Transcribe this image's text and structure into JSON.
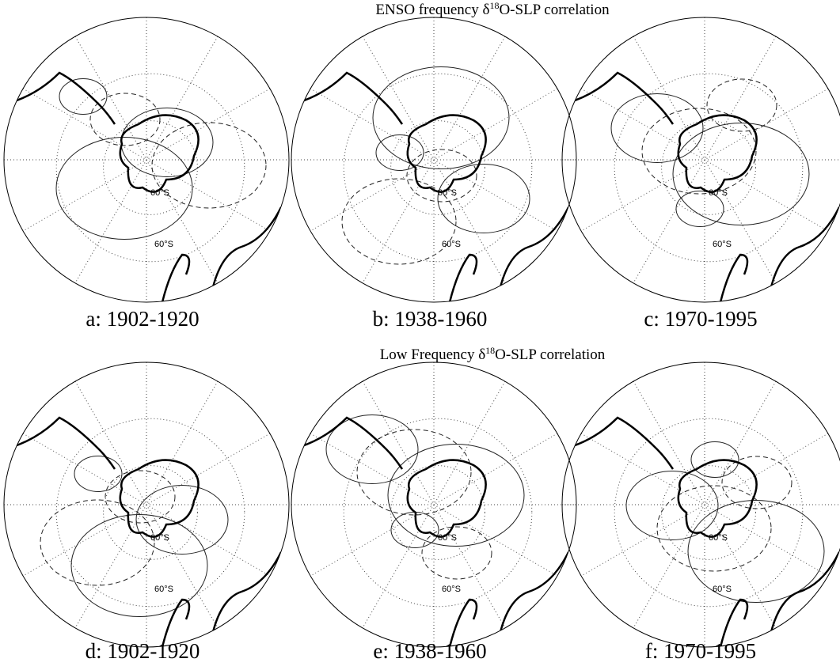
{
  "sections": [
    {
      "title": {
        "prefix": "ENSO frequency δ",
        "sup": "18",
        "suffix": "O-SLP correlation"
      },
      "panels": [
        {
          "caption": "a: 1902-1920",
          "lat_labels": [
            "60°S",
            "60°S"
          ]
        },
        {
          "caption": "b: 1938-1960",
          "lat_labels": [
            "60°S",
            "60°S"
          ]
        },
        {
          "caption": "c: 1970-1995",
          "lat_labels": [
            "60°S",
            "60°S"
          ]
        }
      ]
    },
    {
      "title": {
        "prefix": "Low Frequency δ",
        "sup": "18",
        "suffix": "O-SLP correlation"
      },
      "panels": [
        {
          "caption": "d: 1902-1920",
          "lat_labels": [
            "60°S",
            "60°S"
          ]
        },
        {
          "caption": "e: 1938-1960",
          "lat_labels": [
            "60°S",
            "60°S"
          ]
        },
        {
          "caption": "f: 1970-1995",
          "lat_labels": [
            "60°S",
            "60°S"
          ]
        }
      ]
    }
  ]
}
